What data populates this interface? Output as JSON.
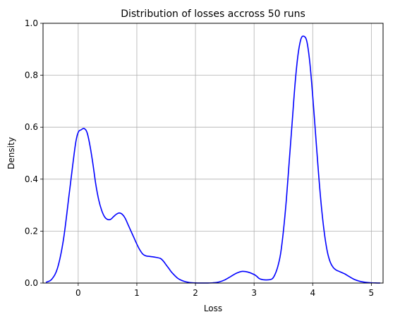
{
  "chart_data": {
    "type": "line",
    "title": "Distribution of losses accross 50 runs",
    "xlabel": "Loss",
    "ylabel": "Density",
    "xlim": [
      -0.6,
      5.2
    ],
    "ylim": [
      0,
      1.0
    ],
    "xticks": [
      0,
      1,
      2,
      3,
      4,
      5
    ],
    "yticks": [
      0.0,
      0.2,
      0.4,
      0.6,
      0.8,
      1.0
    ],
    "grid": true,
    "series": [
      {
        "color": "#0000ff",
        "x": [
          -0.55,
          -0.45,
          -0.35,
          -0.25,
          -0.15,
          -0.05,
          0.0,
          0.05,
          0.1,
          0.15,
          0.2,
          0.25,
          0.3,
          0.35,
          0.4,
          0.45,
          0.5,
          0.55,
          0.6,
          0.65,
          0.7,
          0.75,
          0.8,
          0.85,
          0.9,
          0.95,
          1.0,
          1.05,
          1.1,
          1.15,
          1.2,
          1.3,
          1.4,
          1.45,
          1.5,
          1.55,
          1.6,
          1.7,
          1.8,
          1.9,
          2.0,
          2.1,
          2.2,
          2.3,
          2.4,
          2.5,
          2.6,
          2.7,
          2.8,
          2.9,
          3.0,
          3.05,
          3.1,
          3.2,
          3.3,
          3.35,
          3.4,
          3.45,
          3.5,
          3.55,
          3.6,
          3.65,
          3.7,
          3.75,
          3.8,
          3.85,
          3.9,
          3.95,
          4.0,
          4.05,
          4.1,
          4.15,
          4.2,
          4.25,
          4.3,
          4.35,
          4.4,
          4.45,
          4.5,
          4.55,
          4.6,
          4.7,
          4.8,
          4.9,
          5.0,
          5.1,
          5.15
        ],
        "y": [
          0.003,
          0.015,
          0.06,
          0.17,
          0.35,
          0.53,
          0.58,
          0.59,
          0.595,
          0.58,
          0.53,
          0.46,
          0.38,
          0.32,
          0.28,
          0.255,
          0.245,
          0.245,
          0.255,
          0.265,
          0.27,
          0.265,
          0.25,
          0.225,
          0.2,
          0.175,
          0.15,
          0.128,
          0.112,
          0.105,
          0.103,
          0.1,
          0.095,
          0.085,
          0.07,
          0.055,
          0.04,
          0.018,
          0.007,
          0.002,
          0.0005,
          0.0002,
          0.0002,
          0.001,
          0.004,
          0.012,
          0.025,
          0.038,
          0.045,
          0.042,
          0.033,
          0.025,
          0.016,
          0.012,
          0.015,
          0.03,
          0.06,
          0.11,
          0.2,
          0.32,
          0.47,
          0.62,
          0.77,
          0.88,
          0.94,
          0.95,
          0.93,
          0.85,
          0.72,
          0.57,
          0.42,
          0.29,
          0.19,
          0.12,
          0.08,
          0.06,
          0.05,
          0.045,
          0.04,
          0.035,
          0.028,
          0.015,
          0.007,
          0.003,
          0.001,
          0.0003,
          0.0001
        ]
      }
    ]
  }
}
